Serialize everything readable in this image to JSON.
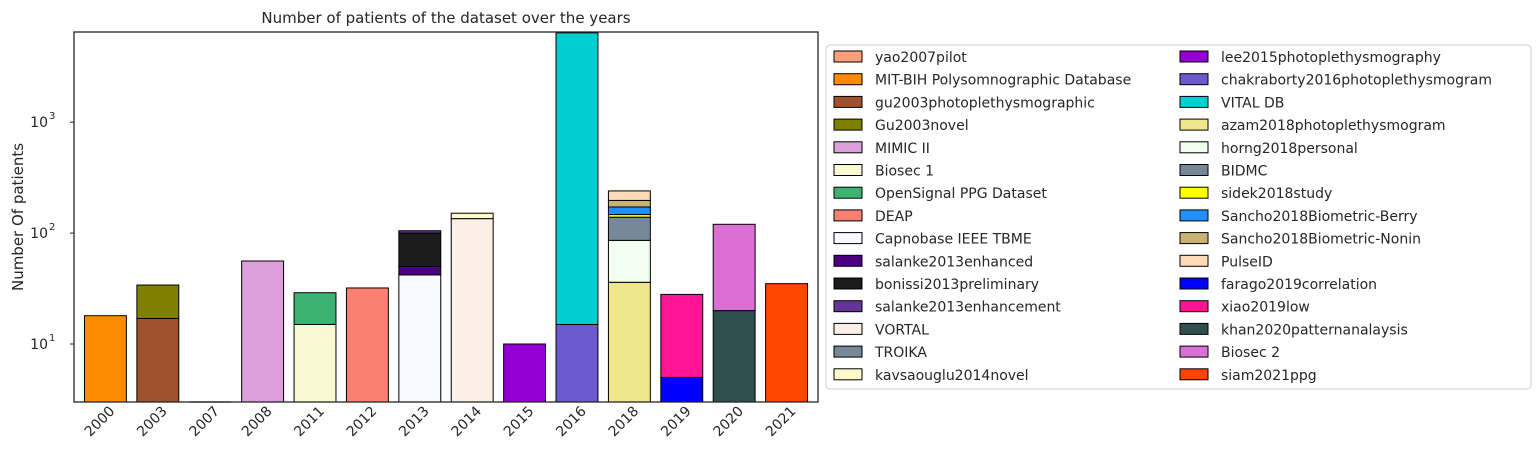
{
  "chart_data": {
    "type": "bar",
    "stacked": true,
    "title": "Number of patients of the dataset over the years",
    "xlabel": "",
    "ylabel": "Number Of patients",
    "yscale": "log",
    "ylim": [
      3,
      6500
    ],
    "yticks": [
      {
        "value": 10,
        "base": "10",
        "exp": "1"
      },
      {
        "value": 100,
        "base": "10",
        "exp": "2"
      },
      {
        "value": 1000,
        "base": "10",
        "exp": "3"
      }
    ],
    "categories": [
      "2000",
      "2003",
      "2007",
      "2008",
      "2011",
      "2012",
      "2013",
      "2014",
      "2015",
      "2016",
      "2018",
      "2019",
      "2020",
      "2021"
    ],
    "legend_position": "outside-right",
    "grid": false,
    "series": [
      {
        "name": "yao2007pilot",
        "color": "#FFA07A",
        "values": [
          0,
          0,
          0,
          0,
          0,
          0,
          0,
          0,
          0,
          0,
          0,
          0,
          0,
          0
        ]
      },
      {
        "name": "MIT-BIH Polysomnographic Database",
        "color": "#FF8C00",
        "values": [
          18,
          0,
          0,
          0,
          0,
          0,
          0,
          0,
          0,
          0,
          0,
          0,
          0,
          0
        ]
      },
      {
        "name": "gu2003photoplethysmographic",
        "color": "#A0522D",
        "values": [
          0,
          17,
          0,
          0,
          0,
          0,
          0,
          0,
          0,
          0,
          0,
          0,
          0,
          0
        ]
      },
      {
        "name": "Gu2003novel",
        "color": "#808000",
        "values": [
          0,
          17,
          0,
          0,
          0,
          0,
          0,
          0,
          0,
          0,
          0,
          0,
          0,
          0
        ]
      },
      {
        "name": "MIMIC II",
        "color": "#DDA0DD",
        "values": [
          0,
          0,
          0,
          56,
          0,
          0,
          0,
          0,
          0,
          0,
          0,
          0,
          0,
          0
        ]
      },
      {
        "name": "Biosec 1",
        "color": "#FAFAD2",
        "values": [
          0,
          0,
          0,
          0,
          15,
          0,
          0,
          0,
          0,
          0,
          0,
          0,
          0,
          0
        ]
      },
      {
        "name": "OpenSignal PPG Dataset",
        "color": "#3CB371",
        "values": [
          0,
          0,
          0,
          0,
          14,
          0,
          0,
          0,
          0,
          0,
          0,
          0,
          0,
          0
        ]
      },
      {
        "name": "DEAP",
        "color": "#FA8072",
        "values": [
          0,
          0,
          0,
          0,
          0,
          32,
          0,
          0,
          0,
          0,
          0,
          0,
          0,
          0
        ]
      },
      {
        "name": "Capnobase IEEE TBME",
        "color": "#F8F8FF",
        "values": [
          0,
          0,
          0,
          0,
          0,
          0,
          42,
          0,
          0,
          0,
          0,
          0,
          0,
          0
        ]
      },
      {
        "name": "salanke2013enhanced",
        "color": "#4B0082",
        "values": [
          0,
          0,
          0,
          0,
          0,
          0,
          8,
          0,
          0,
          0,
          0,
          0,
          0,
          0
        ]
      },
      {
        "name": "bonissi2013preliminary",
        "color": "#1C1C1C",
        "values": [
          0,
          0,
          0,
          0,
          0,
          0,
          50,
          0,
          0,
          0,
          0,
          0,
          0,
          0
        ]
      },
      {
        "name": "salanke2013enhancement",
        "color": "#663399",
        "values": [
          0,
          0,
          0,
          0,
          0,
          0,
          5,
          0,
          0,
          0,
          0,
          0,
          0,
          0
        ]
      },
      {
        "name": "VORTAL",
        "color": "#FAF0E6",
        "values": [
          0,
          0,
          0,
          0,
          0,
          0,
          0,
          135,
          0,
          0,
          0,
          0,
          0,
          0
        ]
      },
      {
        "name": "TROIKA",
        "color": "#778899",
        "values": [
          0,
          0,
          0,
          0,
          0,
          0,
          0,
          0,
          0,
          0,
          0,
          0,
          0,
          0
        ]
      },
      {
        "name": "kavsaouglu2014novel",
        "color": "#FFFACD",
        "values": [
          0,
          0,
          0,
          0,
          0,
          0,
          0,
          16,
          0,
          0,
          0,
          0,
          0,
          0
        ]
      },
      {
        "name": "lee2015photoplethysmography",
        "color": "#9400D3",
        "values": [
          0,
          0,
          0,
          0,
          0,
          0,
          0,
          0,
          10,
          0,
          0,
          0,
          0,
          0
        ]
      },
      {
        "name": "chakraborty2016photoplethysmogram",
        "color": "#6A5ACD",
        "values": [
          0,
          0,
          0,
          0,
          0,
          0,
          0,
          0,
          0,
          15,
          0,
          0,
          0,
          0
        ]
      },
      {
        "name": "VITAL DB",
        "color": "#00CED1",
        "values": [
          0,
          0,
          0,
          0,
          0,
          0,
          0,
          0,
          0,
          6373,
          0,
          0,
          0,
          0
        ]
      },
      {
        "name": "azam2018photoplethysmogram",
        "color": "#F0E68C",
        "values": [
          0,
          0,
          0,
          0,
          0,
          0,
          0,
          0,
          0,
          0,
          36,
          0,
          0,
          0
        ]
      },
      {
        "name": "horng2018personal",
        "color": "#F0FFF0",
        "values": [
          0,
          0,
          0,
          0,
          0,
          0,
          0,
          0,
          0,
          0,
          50,
          0,
          0,
          0
        ]
      },
      {
        "name": "BIDMC",
        "color": "#778899",
        "values": [
          0,
          0,
          0,
          0,
          0,
          0,
          0,
          0,
          0,
          0,
          53,
          0,
          0,
          0
        ]
      },
      {
        "name": "sidek2018study",
        "color": "#FFFF00",
        "values": [
          0,
          0,
          0,
          0,
          0,
          0,
          0,
          0,
          0,
          0,
          8,
          0,
          0,
          0
        ]
      },
      {
        "name": "Sancho2018Biometric-Berry",
        "color": "#1E90FF",
        "values": [
          0,
          0,
          0,
          0,
          0,
          0,
          0,
          0,
          0,
          0,
          25,
          0,
          0,
          0
        ]
      },
      {
        "name": "Sancho2018Biometric-Nonin",
        "color": "#C8B273",
        "values": [
          0,
          0,
          0,
          0,
          0,
          0,
          0,
          0,
          0,
          0,
          25,
          0,
          0,
          0
        ]
      },
      {
        "name": "PulseID",
        "color": "#FFDAB9",
        "values": [
          0,
          0,
          0,
          0,
          0,
          0,
          0,
          0,
          0,
          0,
          43,
          0,
          0,
          0
        ]
      },
      {
        "name": "farago2019correlation",
        "color": "#0000FF",
        "values": [
          0,
          0,
          0,
          0,
          0,
          0,
          0,
          0,
          0,
          0,
          0,
          5,
          0,
          0
        ]
      },
      {
        "name": "xiao2019low",
        "color": "#FF1493",
        "values": [
          0,
          0,
          0,
          0,
          0,
          0,
          0,
          0,
          0,
          0,
          0,
          23,
          0,
          0
        ]
      },
      {
        "name": "khan2020patternanalaysis",
        "color": "#2F4F4F",
        "values": [
          0,
          0,
          0,
          0,
          0,
          0,
          0,
          0,
          0,
          0,
          0,
          0,
          20,
          0
        ]
      },
      {
        "name": "Biosec 2",
        "color": "#DA70D6",
        "values": [
          0,
          0,
          0,
          0,
          0,
          0,
          0,
          0,
          0,
          0,
          0,
          0,
          100,
          0
        ]
      },
      {
        "name": "siam2021ppg",
        "color": "#FF4500",
        "values": [
          0,
          0,
          0,
          0,
          0,
          0,
          0,
          0,
          0,
          0,
          0,
          0,
          0,
          35
        ]
      }
    ]
  }
}
